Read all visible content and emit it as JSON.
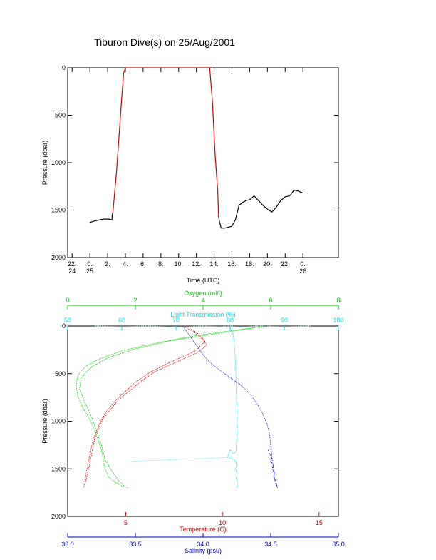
{
  "title": "Tiburon Dive(s) on 25/Aug/2001",
  "chart_data": [
    {
      "type": "line",
      "xlabel": "Time (UTC)",
      "ylabel": "Pressure (dbar)",
      "ylim": [
        2000,
        0
      ],
      "xlim": [
        -2.5,
        28
      ],
      "y_ticks": [
        "0",
        "500",
        "1000",
        "1500",
        "2000"
      ],
      "x_ticks": [
        {
          "v": -2,
          "l1": "22:",
          "l2": "24"
        },
        {
          "v": 0,
          "l1": "0:",
          "l2": "25"
        },
        {
          "v": 2,
          "l1": "2:",
          "l2": ""
        },
        {
          "v": 4,
          "l1": "4:",
          "l2": ""
        },
        {
          "v": 6,
          "l1": "6:",
          "l2": ""
        },
        {
          "v": 8,
          "l1": "8:",
          "l2": ""
        },
        {
          "v": 10,
          "l1": "10:",
          "l2": ""
        },
        {
          "v": 12,
          "l1": "12:",
          "l2": ""
        },
        {
          "v": 14,
          "l1": "14:",
          "l2": ""
        },
        {
          "v": 16,
          "l1": "16:",
          "l2": ""
        },
        {
          "v": 18,
          "l1": "18:",
          "l2": ""
        },
        {
          "v": 20,
          "l1": "20:",
          "l2": ""
        },
        {
          "v": 22,
          "l1": "22:",
          "l2": ""
        },
        {
          "v": 24,
          "l1": "0:",
          "l2": "26"
        }
      ],
      "series": [
        {
          "color": "#000000",
          "x": [
            0.0,
            0.5,
            1.0,
            1.5,
            2.0,
            2.3,
            2.5,
            2.5,
            2.6
          ],
          "y": [
            1630,
            1615,
            1605,
            1595,
            1595,
            1598,
            1605,
            1560,
            1520
          ]
        },
        {
          "color": "#cc0000",
          "x": [
            2.6,
            3.0,
            3.3,
            3.6,
            3.8,
            4.0,
            6.0,
            8.0,
            10.0,
            12.0,
            13.5,
            13.8,
            14.1,
            14.4,
            14.5
          ],
          "y": [
            1520,
            1100,
            700,
            300,
            60,
            0,
            0,
            0,
            0,
            0,
            0,
            350,
            900,
            1300,
            1560
          ]
        },
        {
          "color": "#000000",
          "x": [
            14.5,
            14.6,
            14.8,
            15.2,
            16.0,
            16.4,
            16.8,
            17.2,
            17.6,
            18.0,
            18.5,
            19.0,
            19.5,
            20.0,
            20.5,
            21.0,
            21.5,
            22.0,
            22.5,
            23.0,
            23.5,
            24.0
          ],
          "y": [
            1560,
            1620,
            1690,
            1690,
            1670,
            1600,
            1450,
            1420,
            1400,
            1390,
            1350,
            1400,
            1450,
            1490,
            1520,
            1470,
            1400,
            1360,
            1350,
            1290,
            1300,
            1320
          ]
        }
      ]
    },
    {
      "type": "line",
      "ylabel": "Pressure (dbar)",
      "ylim": [
        2000,
        0
      ],
      "y_ticks": [
        "0",
        "500",
        "1000",
        "1500",
        "2000"
      ],
      "axes": [
        {
          "id": "temp",
          "label": "Temperature (C)",
          "color": "#cc0000",
          "min": 2.0,
          "max": 16.0,
          "position": "bottom",
          "ticks": [
            {
              "v": 5,
              "l": "5"
            },
            {
              "v": 10,
              "l": "10"
            },
            {
              "v": 15,
              "l": "15"
            }
          ]
        },
        {
          "id": "sal",
          "label": "Salinity (psu)",
          "color": "#0000bb",
          "min": 33.0,
          "max": 35.0,
          "position": "bottom-lower",
          "ticks": [
            {
              "v": 33.0,
              "l": "33.0"
            },
            {
              "v": 33.5,
              "l": "33.5"
            },
            {
              "v": 34.0,
              "l": "34.0"
            },
            {
              "v": 34.5,
              "l": "34.5"
            },
            {
              "v": 35.0,
              "l": "35.0"
            }
          ]
        },
        {
          "id": "oxy",
          "label": "Oxygen (ml/l)",
          "color": "#00cc00",
          "min": 0,
          "max": 8,
          "position": "top-upper",
          "ticks": [
            {
              "v": 0,
              "l": "0"
            },
            {
              "v": 2,
              "l": "2"
            },
            {
              "v": 4,
              "l": "4"
            },
            {
              "v": 6,
              "l": "6"
            },
            {
              "v": 8,
              "l": "8"
            }
          ]
        },
        {
          "id": "trans",
          "label": "Light Transmission (%)",
          "color": "#00e0e0",
          "min": 50,
          "max": 100,
          "position": "top",
          "ticks": [
            {
              "v": 50,
              "l": "50"
            },
            {
              "v": 60,
              "l": "60"
            },
            {
              "v": 70,
              "l": "70"
            },
            {
              "v": 80,
              "l": "80"
            },
            {
              "v": 90,
              "l": "90"
            },
            {
              "v": 100,
              "l": "100"
            }
          ]
        }
      ],
      "series": [
        {
          "axis": "temp",
          "color": "#ee0000",
          "x": [
            8.0,
            8.5,
            8.9,
            9.2,
            8.7,
            7.6,
            6.5,
            5.8,
            5.2,
            4.6,
            4.2,
            3.8,
            3.6,
            3.4,
            3.3,
            3.2,
            3.1,
            3.0,
            2.9,
            2.8
          ],
          "y": [
            0,
            60,
            120,
            200,
            280,
            380,
            480,
            580,
            680,
            780,
            880,
            980,
            1080,
            1180,
            1280,
            1380,
            1480,
            1580,
            1650,
            1700
          ]
        },
        {
          "axis": "temp",
          "color": "#ee0000",
          "x": [
            8.4,
            8.8,
            9.1,
            8.6,
            7.4,
            6.3,
            5.5,
            4.9,
            4.4,
            4.0,
            3.7,
            3.5,
            3.3,
            3.2,
            3.1,
            3.0,
            2.9
          ],
          "y": [
            30,
            90,
            160,
            260,
            370,
            480,
            590,
            700,
            800,
            900,
            1000,
            1100,
            1200,
            1300,
            1400,
            1500,
            1600
          ]
        },
        {
          "axis": "sal",
          "color": "#2233cc",
          "x": [
            33.85,
            33.9,
            33.95,
            34.0,
            34.05,
            34.12,
            34.2,
            34.28,
            34.35,
            34.4,
            34.44,
            34.47,
            34.49,
            34.5,
            34.51,
            34.52,
            34.53,
            34.55
          ],
          "y": [
            0,
            100,
            200,
            300,
            380,
            460,
            540,
            620,
            720,
            820,
            920,
            1020,
            1120,
            1250,
            1380,
            1500,
            1620,
            1700
          ]
        },
        {
          "axis": "sal",
          "color": "#0000dd",
          "x": [
            34.48,
            34.49,
            34.51,
            34.5,
            34.52,
            34.51,
            34.53,
            34.52,
            34.54,
            34.55
          ],
          "y": [
            1300,
            1340,
            1380,
            1420,
            1460,
            1500,
            1540,
            1580,
            1640,
            1700
          ]
        },
        {
          "axis": "oxy",
          "color": "#00dd00",
          "x": [
            6.0,
            5.0,
            3.8,
            2.6,
            1.6,
            0.9,
            0.5,
            0.3,
            0.25,
            0.3,
            0.45,
            0.65,
            0.8,
            0.9,
            1.0,
            1.05,
            1.1,
            1.2,
            1.4,
            1.6,
            1.8
          ],
          "y": [
            0,
            40,
            100,
            180,
            260,
            350,
            430,
            520,
            620,
            740,
            860,
            980,
            1100,
            1200,
            1300,
            1400,
            1500,
            1580,
            1640,
            1680,
            1700
          ]
        },
        {
          "axis": "oxy",
          "color": "#00cc00",
          "x": [
            5.5,
            4.4,
            3.1,
            2.0,
            1.2,
            0.7,
            0.4,
            0.35,
            0.5,
            0.7,
            0.85,
            1.0,
            1.1,
            1.3,
            1.5,
            1.7
          ],
          "y": [
            20,
            80,
            150,
            240,
            330,
            430,
            540,
            660,
            800,
            950,
            1100,
            1250,
            1400,
            1520,
            1620,
            1690
          ]
        },
        {
          "axis": "trans",
          "color": "#00e0e0",
          "x": [
            80.5,
            80.2,
            80.6,
            80.8,
            81.0,
            81.1,
            81.2,
            81.3,
            81.2,
            81.1,
            80.5,
            80.0,
            79.5,
            80.5,
            81.0,
            81.2,
            81.0,
            81.3,
            81.1,
            81.4,
            81.2
          ],
          "y": [
            0,
            40,
            100,
            200,
            400,
            600,
            800,
            1000,
            1200,
            1320,
            1340,
            1300,
            1380,
            1400,
            1420,
            1450,
            1500,
            1550,
            1600,
            1650,
            1700
          ]
        },
        {
          "axis": "trans",
          "color": "#66e8e8",
          "x": [
            55,
            60,
            65,
            70,
            75,
            78,
            80,
            82,
            85,
            90,
            95
          ],
          "y": [
            0,
            5,
            0,
            10,
            0,
            5,
            0,
            10,
            0,
            5,
            0
          ]
        },
        {
          "axis": "trans",
          "color": "#66e8e8",
          "x": [
            62,
            67,
            71,
            74,
            77,
            79,
            80.5
          ],
          "y": [
            1420,
            1410,
            1400,
            1395,
            1390,
            1380,
            1370
          ]
        }
      ]
    }
  ]
}
